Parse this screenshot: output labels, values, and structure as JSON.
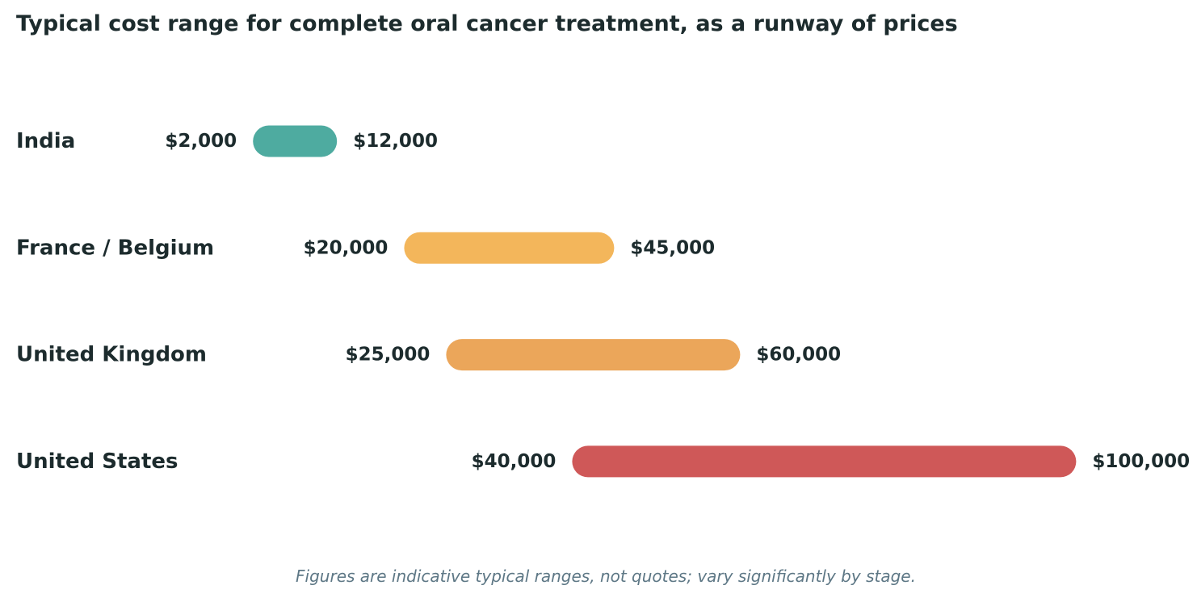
{
  "chart_data": {
    "type": "bar",
    "title": "Typical cost range for complete oral cancer treatment, as a runway of prices",
    "footnote": "Figures are indicative typical ranges, not quotes; vary significantly by stage.",
    "xlabel": "",
    "ylabel": "",
    "currency": "$",
    "grid": false,
    "legend": "none",
    "categories": [
      "India",
      "France / Belgium",
      "United Kingdom",
      "United States"
    ],
    "ranges": [
      {
        "category": "India",
        "low": 2000,
        "high": 12000,
        "low_label": "$2,000",
        "high_label": "$12,000",
        "color": "#4eaba0"
      },
      {
        "category": "France / Belgium",
        "low": 20000,
        "high": 45000,
        "low_label": "$20,000",
        "high_label": "$45,000",
        "color": "#f3b65b"
      },
      {
        "category": "United Kingdom",
        "low": 25000,
        "high": 60000,
        "low_label": "$25,000",
        "high_label": "$60,000",
        "color": "#eba65a"
      },
      {
        "category": "United States",
        "low": 40000,
        "high": 100000,
        "low_label": "$40,000",
        "high_label": "$100,000",
        "color": "#cf5858"
      }
    ]
  },
  "colors": {
    "text": "#1c2b2d",
    "footnote": "#5d7785"
  }
}
